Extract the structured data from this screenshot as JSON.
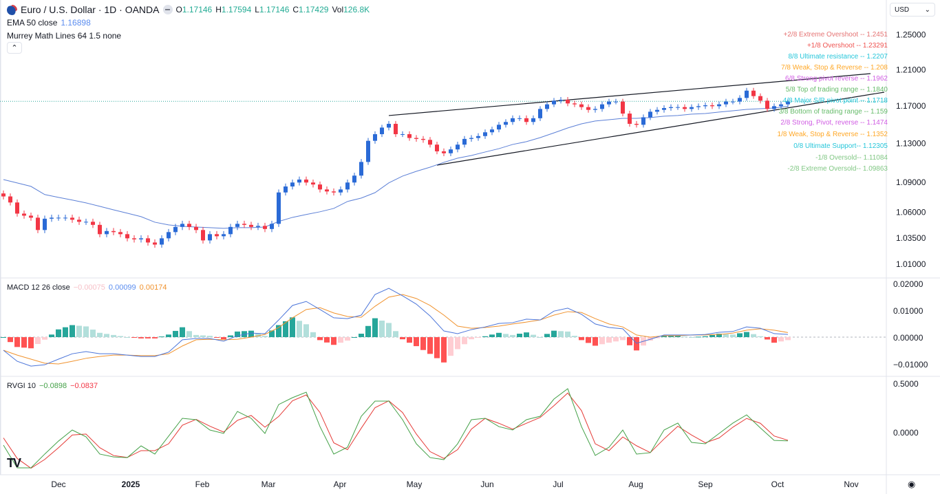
{
  "header": {
    "title": "Euro / U.S. Dollar · 1D · OANDA",
    "o_label": "O",
    "o": "1.17146",
    "h_label": "H",
    "h": "1.17594",
    "l_label": "L",
    "l": "1.17146",
    "c_label": "C",
    "c": "1.17429",
    "vol_label": "Vol",
    "vol": "126.8K"
  },
  "ema": {
    "label": "EMA 50 close",
    "value": "1.16898"
  },
  "murrey": {
    "label": "Murrey Math Lines 64 1.5 none",
    "lines": [
      {
        "text": "+2/8 Extreme Overshoot --  1.2451",
        "color": "#e57373"
      },
      {
        "text": "+1/8 Overshoot --  1.23291",
        "color": "#ef5350"
      },
      {
        "text": "8/8 Ultimate resistance --  1.2207",
        "color": "#26c6da"
      },
      {
        "text": "7/8 Weak, Stop & Reverse --  1.208",
        "color": "#ffa726"
      },
      {
        "text": "6/8 Strong pivot reverse --  1.1962",
        "color": "#d05ce3"
      },
      {
        "text": "5/8 Top of trading range --  1.1840",
        "color": "#66bb6a"
      },
      {
        "text": "4/8 Major S/R pivot point --  1.1718",
        "color": "#26c6da"
      },
      {
        "text": "3/8 Bottom of trading range --  1.159",
        "color": "#66bb6a"
      },
      {
        "text": "2/8 Strong, Pivot, reverse --  1.1474",
        "color": "#d05ce3"
      },
      {
        "text": "1/8 Weak, Stop & Reverse --  1.1352",
        "color": "#ffa726"
      },
      {
        "text": "0/8 Ultimate Support--  1.12305",
        "color": "#26c6da"
      },
      {
        "text": "-1/8 Oversold--  1.11084",
        "color": "#81c784"
      },
      {
        "text": "-2/8 Extreme Oversold--  1.09863",
        "color": "#81c784"
      }
    ]
  },
  "macd_legend": {
    "label": "MACD 12 26 close",
    "hist": "−0.00075",
    "macd": "0.00099",
    "signal": "0.00174"
  },
  "rvgi_legend": {
    "label": "RVGI 10",
    "rvgi": "−0.0898",
    "signal": "−0.0837"
  },
  "currency": "USD",
  "colors": {
    "up": "#2a6ad6",
    "down": "#f23645",
    "ema": "#5b7fd6",
    "macd": "#4a74d9",
    "signal": "#f0922d",
    "hist_up": "#26a69a",
    "hist_up_fade": "#b2dfdb",
    "hist_dn": "#ff5252",
    "hist_dn_fade": "#ffcdd2",
    "rvgi": "#43a047",
    "rvgi_signal": "#e53935",
    "last_price": "#26a69a"
  },
  "chart_data": [
    {
      "type": "candlestick",
      "pane": "price",
      "scale": "log",
      "y_ticks": [
        "1.25000",
        "1.21000",
        "1.17000",
        "1.13000",
        "1.09000",
        "1.06000",
        "1.03500",
        "1.01000"
      ],
      "x_ticks": [
        "Dec",
        "2025",
        "Feb",
        "Mar",
        "Apr",
        "May",
        "Jun",
        "Jul",
        "Aug",
        "Sep",
        "Oct",
        "Nov"
      ],
      "last_price": 1.17429,
      "close": [
        1.075,
        1.069,
        1.058,
        1.056,
        1.054,
        1.042,
        1.053,
        1.054,
        1.054,
        1.054,
        1.052,
        1.05,
        1.05,
        1.047,
        1.038,
        1.041,
        1.04,
        1.038,
        1.034,
        1.033,
        1.034,
        1.03,
        1.028,
        1.034,
        1.04,
        1.045,
        1.048,
        1.045,
        1.042,
        1.032,
        1.038,
        1.036,
        1.038,
        1.045,
        1.048,
        1.047,
        1.045,
        1.046,
        1.043,
        1.048,
        1.079,
        1.085,
        1.089,
        1.092,
        1.089,
        1.087,
        1.082,
        1.08,
        1.079,
        1.082,
        1.089,
        1.096,
        1.11,
        1.132,
        1.139,
        1.146,
        1.15,
        1.139,
        1.139,
        1.135,
        1.134,
        1.133,
        1.128,
        1.121,
        1.119,
        1.123,
        1.128,
        1.134,
        1.135,
        1.137,
        1.141,
        1.144,
        1.149,
        1.152,
        1.156,
        1.156,
        1.152,
        1.156,
        1.166,
        1.171,
        1.175,
        1.176,
        1.172,
        1.171,
        1.168,
        1.165,
        1.166,
        1.171,
        1.174,
        1.174,
        1.161,
        1.15,
        1.149,
        1.157,
        1.163,
        1.165,
        1.167,
        1.168,
        1.168,
        1.166,
        1.168,
        1.169,
        1.17,
        1.169,
        1.171,
        1.174,
        1.174,
        1.178,
        1.186,
        1.18,
        1.175,
        1.166,
        1.169,
        1.171,
        1.174
      ],
      "ema50": [
        1.092,
        1.0886,
        1.0851,
        1.0769,
        1.0741,
        1.0714,
        1.0686,
        1.0652,
        1.0617,
        1.0584,
        1.055,
        1.0496,
        1.047,
        1.0456,
        1.0449,
        1.0443,
        1.0436,
        1.0443,
        1.0443,
        1.0449,
        1.0503,
        1.0543,
        1.0571,
        1.0598,
        1.0631,
        1.07,
        1.0734,
        1.0788,
        1.0886,
        1.0955,
        1.1004,
        1.1046,
        1.1096,
        1.1139,
        1.1167,
        1.1203,
        1.1238,
        1.1282,
        1.1311,
        1.1354,
        1.1404,
        1.1456,
        1.15,
        1.153,
        1.1544,
        1.1559,
        1.1559,
        1.1567,
        1.1582,
        1.1589,
        1.1604,
        1.1611,
        1.1626,
        1.164,
        1.1655,
        1.1663,
        1.167,
        1.169
      ],
      "trendlines": [
        {
          "from_price": 1.1589,
          "to_price": 1.2049
        },
        {
          "from_price": 1.1067,
          "to_price": 1.1843
        }
      ]
    },
    {
      "type": "line",
      "pane": "macd",
      "y_ticks": [
        "0.02000",
        "0.01000",
        "0.00000",
        "−0.01000"
      ],
      "macd": [
        -0.0049,
        -0.009,
        -0.0108,
        -0.0103,
        -0.0082,
        -0.0062,
        -0.0054,
        -0.0062,
        -0.0062,
        -0.0067,
        -0.0072,
        -0.0072,
        -0.0056,
        -0.001,
        -0.0005,
        -0.0005,
        -0.0015,
        0.0005,
        0.0015,
        0.0013,
        0.0064,
        0.0118,
        0.0133,
        0.0103,
        0.0072,
        0.0069,
        0.0082,
        0.0159,
        0.0182,
        0.0154,
        0.0123,
        0.0079,
        0.0023,
        0.0013,
        0.0028,
        0.0038,
        0.0051,
        0.0054,
        0.0067,
        0.0064,
        0.0097,
        0.0108,
        0.0085,
        0.0049,
        0.0036,
        0.0031,
        -0.0023,
        -0.0008,
        0.0008,
        0.0008,
        0.0008,
        0.001,
        0.0018,
        0.0021,
        0.0038,
        0.0033,
        0.0013,
        0.001
      ],
      "signal": [
        -0.0049,
        -0.0067,
        -0.0082,
        -0.0097,
        -0.01,
        -0.009,
        -0.0079,
        -0.0072,
        -0.0067,
        -0.0067,
        -0.0069,
        -0.0069,
        -0.0062,
        -0.0033,
        -0.001,
        -0.0008,
        -0.001,
        -0.0008,
        0,
        0.001,
        0.0036,
        0.0072,
        0.0103,
        0.011,
        0.009,
        0.0077,
        0.0074,
        0.0115,
        0.0149,
        0.0159,
        0.0144,
        0.0118,
        0.0082,
        0.0041,
        0.0033,
        0.0036,
        0.0041,
        0.0049,
        0.0056,
        0.0064,
        0.0082,
        0.0095,
        0.0092,
        0.0069,
        0.0049,
        0.0038,
        0.0008,
        0,
        0.0005,
        0.0005,
        0.0008,
        0.0008,
        0.001,
        0.0015,
        0.0026,
        0.0031,
        0.0026,
        0.0017
      ]
    },
    {
      "type": "line",
      "pane": "rvgi",
      "y_ticks": [
        "0.5000",
        "0.0000"
      ],
      "rvgi": [
        -0.134,
        -0.366,
        -0.366,
        -0.225,
        -0.092,
        0.021,
        -0.049,
        -0.225,
        -0.254,
        -0.261,
        -0.141,
        -0.225,
        -0.042,
        0.141,
        0.127,
        0.021,
        -0.014,
        0.211,
        0.141,
        -0.014,
        0.282,
        0.352,
        0.408,
        0.056,
        -0.225,
        -0.155,
        0.162,
        0.317,
        0.317,
        0.127,
        -0.12,
        -0.261,
        -0.282,
        -0.12,
        0.127,
        0.141,
        0.056,
        0.021,
        0.127,
        0.162,
        0.338,
        0.444,
        0.056,
        -0.239,
        -0.155,
        0.021,
        -0.225,
        -0.211,
        0.021,
        0.092,
        -0.106,
        -0.12,
        -0.014,
        0.092,
        0.176,
        0.042,
        -0.085,
        -0.09
      ],
      "signal": [
        -0.06,
        -0.27,
        -0.37,
        -0.28,
        -0.16,
        -0.03,
        -0.02,
        -0.16,
        -0.24,
        -0.26,
        -0.19,
        -0.19,
        -0.12,
        0.07,
        0.13,
        0.06,
        0.0,
        0.12,
        0.17,
        0.05,
        0.16,
        0.32,
        0.38,
        0.2,
        -0.11,
        -0.18,
        0.04,
        0.25,
        0.32,
        0.2,
        -0.02,
        -0.2,
        -0.27,
        -0.18,
        0.03,
        0.14,
        0.09,
        0.03,
        0.09,
        0.15,
        0.27,
        0.4,
        0.22,
        -0.12,
        -0.19,
        -0.05,
        -0.14,
        -0.21,
        -0.07,
        0.06,
        -0.03,
        -0.11,
        -0.06,
        0.05,
        0.14,
        0.09,
        -0.04,
        -0.084
      ]
    }
  ]
}
